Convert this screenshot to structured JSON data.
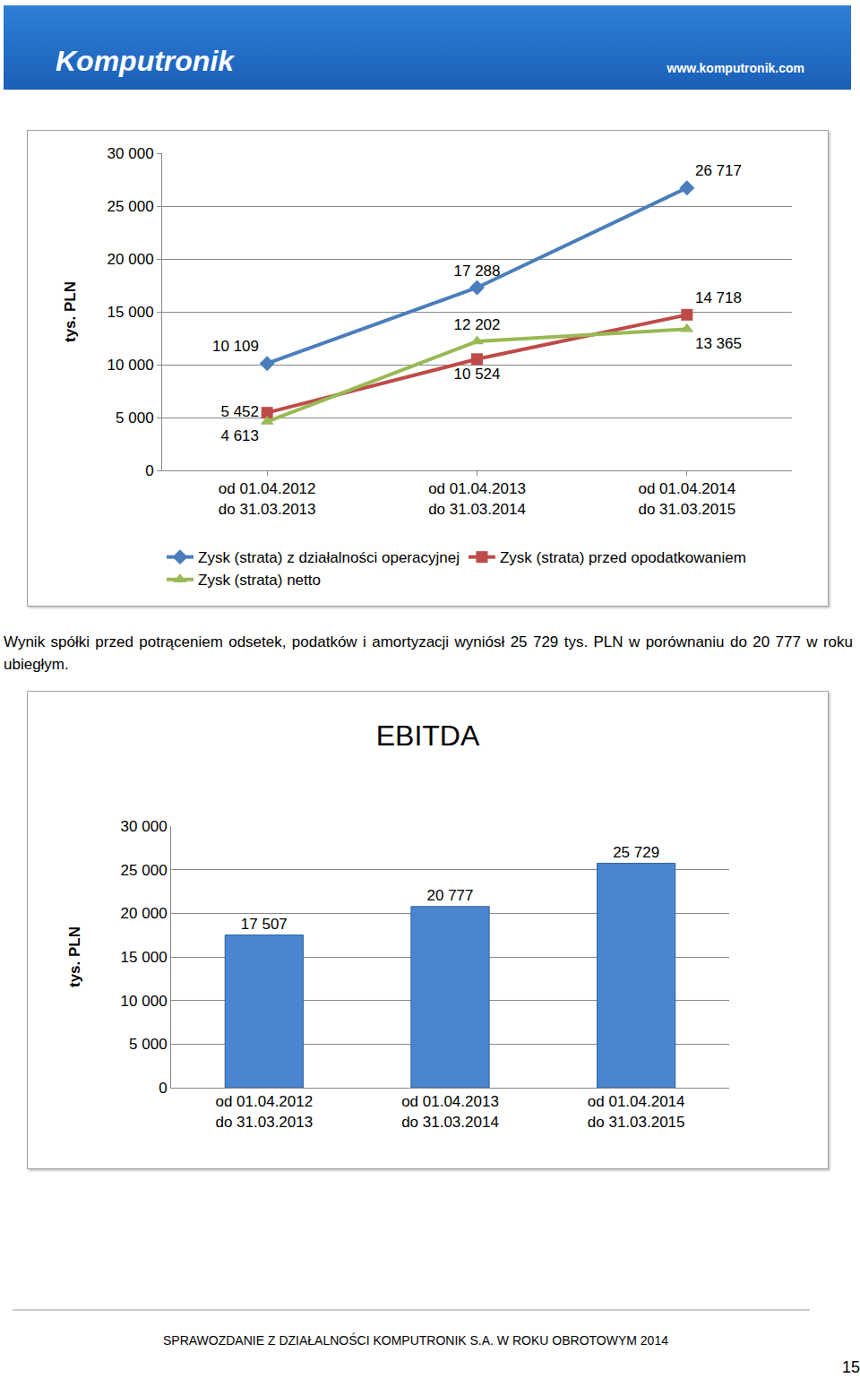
{
  "header": {
    "logo": "Komputronik",
    "url": "www.komputronik.com"
  },
  "chart_data": [
    {
      "type": "line",
      "categories": [
        "od 01.04.2012\ndo 31.03.2013",
        "od 01.04.2013\ndo 31.03.2014",
        "od 01.04.2014\ndo 31.03.2015"
      ],
      "y_label": "tys. PLN",
      "ylim": [
        0,
        30000
      ],
      "yticks": [
        0,
        {
          "value": 5000,
          "label": "5 000"
        },
        {
          "value": 10000,
          "label": "10 000"
        },
        {
          "value": 15000,
          "label": "15 000"
        },
        {
          "value": 20000,
          "label": "20 000"
        },
        {
          "value": 25000,
          "label": "25 000"
        },
        {
          "value": 30000,
          "label": "30 000"
        }
      ],
      "grid": true,
      "legend": "bottom",
      "data_labels": true,
      "series": [
        {
          "name": "Zysk (strata) z działalności operacyjnej",
          "color": "#4a7ebb",
          "marker": "diamond",
          "values": [
            10109,
            17288,
            26717
          ],
          "value_labels": [
            "10 109",
            "17 288",
            "26 717"
          ]
        },
        {
          "name": "Zysk (strata) przed opodatkowaniem",
          "color": "#be4b48",
          "marker": "square",
          "values": [
            5452,
            10524,
            14718
          ],
          "value_labels": [
            "5 452",
            "10 524",
            "14 718"
          ]
        },
        {
          "name": "Zysk (strata) netto",
          "color": "#98b954",
          "marker": "triangle-up",
          "values": [
            4613,
            12202,
            13365
          ],
          "value_labels": [
            "4 613",
            "12 202",
            "13 365"
          ]
        }
      ]
    },
    {
      "type": "bar",
      "title": "EBITDA",
      "categories": [
        "od 01.04.2012\ndo 31.03.2013",
        "od 01.04.2013\ndo 31.03.2014",
        "od 01.04.2014\ndo 31.03.2015"
      ],
      "y_label": "tys. PLN",
      "ylim": [
        0,
        30000
      ],
      "yticks": [
        0,
        {
          "value": 5000,
          "label": "5 000"
        },
        {
          "value": 10000,
          "label": "10 000"
        },
        {
          "value": 15000,
          "label": "15 000"
        },
        {
          "value": 20000,
          "label": "20 000"
        },
        {
          "value": 25000,
          "label": "25 000"
        },
        {
          "value": 30000,
          "label": "30 000"
        }
      ],
      "grid": true,
      "data_labels": true,
      "color": "#4a86cf",
      "values": [
        17507,
        20777,
        25729
      ],
      "value_labels": [
        "17 507",
        "20 777",
        "25 729"
      ]
    }
  ],
  "paragraph": "Wynik spółki przed potrąceniem odsetek, podatków i amortyzacji wyniósł 25 729 tys. PLN w porównaniu do 20 777 w roku ubiegłym.",
  "footer": "SPRAWOZDANIE Z DZIAŁALNOŚCI KOMPUTRONIK S.A. W ROKU OBROTOWYM 2014",
  "page_number": 15
}
